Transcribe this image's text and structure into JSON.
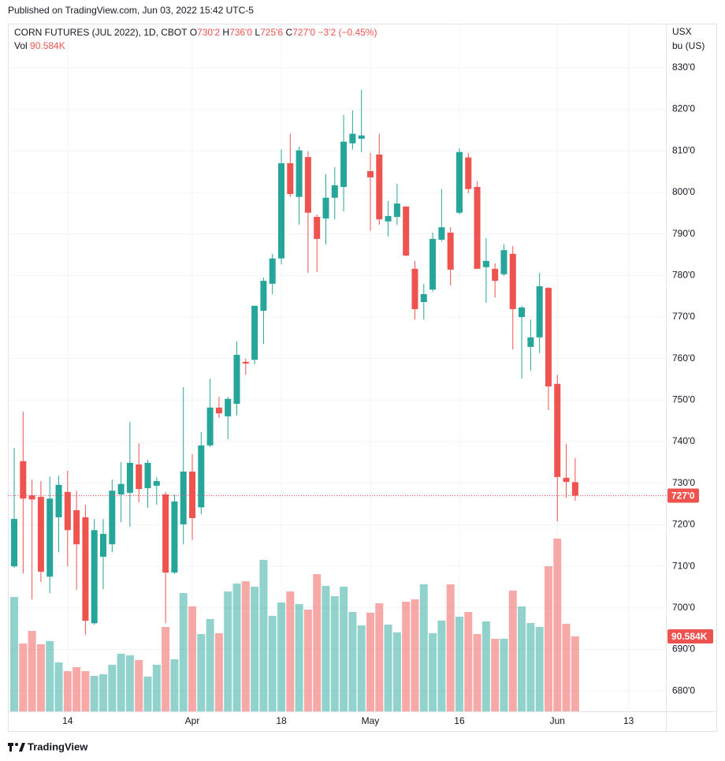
{
  "header": {
    "published": "Published on TradingView.com, Jun 03, 2022 15:42 UTC-5"
  },
  "footer": {
    "brand": "TradingView"
  },
  "chart_data": {
    "type": "candlestick",
    "legend": {
      "symbol": "CORN FUTURES (JUL 2022), 1D, CBOT",
      "fields": [
        {
          "key": "O",
          "text": "730'2"
        },
        {
          "key": "H",
          "text": "736'0"
        },
        {
          "key": "L",
          "text": "725'6"
        },
        {
          "key": "C",
          "text": "727'0"
        }
      ],
      "change": "−3'2 (−0.45%)",
      "volume_key": "Vol",
      "volume_text": "90.584K"
    },
    "currency": "USX",
    "unit": "bu (US)",
    "up_color": "#26a69a",
    "down_color": "#ef5350",
    "open": [
      710.0,
      735.3,
      727.1,
      726.7,
      707.5,
      721.8,
      727.9,
      723.5,
      721.8,
      696.3,
      712.3,
      715.3,
      727.3,
      727.7,
      734.5,
      728.8,
      729.4,
      727.3,
      708.5,
      720.1,
      732.8,
      724.2,
      739.1,
      748.2,
      746.1,
      749.1,
      759.2,
      759.7,
      771.5,
      778.0,
      784.1,
      807.0,
      798.9,
      808.5,
      794.1,
      793.7,
      798.7,
      801.3,
      811.8,
      812.9,
      805.1,
      809.1,
      793.0,
      794.1,
      796.6,
      781.6,
      773.6,
      776.6,
      788.6,
      790.3,
      795.1,
      808.4,
      801.3,
      782.0,
      781.6,
      780.3,
      785.2,
      770.0,
      762.8,
      765.1,
      777.0,
      753.9,
      731.3,
      730.25
    ],
    "high": [
      738.5,
      747.2,
      730.9,
      730.5,
      731.6,
      731.8,
      733.0,
      728.2,
      724.8,
      721.4,
      721.4,
      730.9,
      735.1,
      744.7,
      739.6,
      735.6,
      731.5,
      727.9,
      727.3,
      753.1,
      737.0,
      742.3,
      755.2,
      750.8,
      750.8,
      764.1,
      760.0,
      772.7,
      779.5,
      785.2,
      810.3,
      814.1,
      811.0,
      809.9,
      794.7,
      804.4,
      806.1,
      818.6,
      819.7,
      824.7,
      809.5,
      814.1,
      797.9,
      802.1,
      796.6,
      783.5,
      778.0,
      790.3,
      800.8,
      791.6,
      810.6,
      809.5,
      802.7,
      789.0,
      782.9,
      787.5,
      787.1,
      772.7,
      769.4,
      780.6,
      777.2,
      756.1,
      739.4,
      736.0
    ],
    "low": [
      709.6,
      708.3,
      702.0,
      706.2,
      703.5,
      713.4,
      710.0,
      704.3,
      693.5,
      695.9,
      704.5,
      713.4,
      720.6,
      719.5,
      725.4,
      724.1,
      724.8,
      696.3,
      708.1,
      715.3,
      716.3,
      722.5,
      738.7,
      745.7,
      740.6,
      746.3,
      756.1,
      758.6,
      763.5,
      775.5,
      782.7,
      798.9,
      792.2,
      780.6,
      780.8,
      787.5,
      793.5,
      795.4,
      810.3,
      809.7,
      790.7,
      792.2,
      789.4,
      792.2,
      784.6,
      769.4,
      769.4,
      776.1,
      788.2,
      777.6,
      794.7,
      799.8,
      781.6,
      773.4,
      774.7,
      779.9,
      762.2,
      755.2,
      757.1,
      761.3,
      747.6,
      720.8,
      726.5,
      725.75
    ],
    "close": [
      721.4,
      726.3,
      726.1,
      708.7,
      726.3,
      729.6,
      718.7,
      715.3,
      696.9,
      718.7,
      717.8,
      728.2,
      729.8,
      734.9,
      728.6,
      734.9,
      730.5,
      708.5,
      725.6,
      732.8,
      721.6,
      739.1,
      748.2,
      746.8,
      750.3,
      760.9,
      758.8,
      772.7,
      778.7,
      784.1,
      807.0,
      799.6,
      810.1,
      795.1,
      788.8,
      798.7,
      801.7,
      812.2,
      814.1,
      813.7,
      803.6,
      793.5,
      794.3,
      797.3,
      784.8,
      771.9,
      775.5,
      788.8,
      791.6,
      781.4,
      809.7,
      800.8,
      781.6,
      783.5,
      778.7,
      786.1,
      771.9,
      772.3,
      765.1,
      777.4,
      753.3,
      731.5,
      730.3,
      727.0
    ],
    "volume": [
      138.3,
      82.0,
      97.3,
      81.0,
      84.9,
      59.1,
      48.6,
      53.4,
      48.6,
      42.9,
      44.8,
      56.3,
      69.6,
      67.7,
      62.0,
      42.0,
      56.3,
      102.0,
      62.9,
      143.0,
      126.8,
      93.4,
      111.6,
      94.4,
      144.9,
      154.5,
      157.3,
      150.7,
      183.1,
      115.4,
      131.6,
      144.9,
      129.7,
      123.0,
      165.9,
      151.6,
      139.2,
      150.7,
      120.1,
      103.9,
      119.2,
      130.6,
      104.9,
      95.4,
      132.5,
      135.4,
      153.5,
      94.4,
      109.7,
      153.5,
      114.4,
      120.1,
      93.4,
      108.7,
      87.7,
      87.7,
      145.9,
      126.8,
      106.8,
      102.0,
      175.4,
      208.8,
      105.8,
      90.584
    ],
    "last_price": {
      "value": 727.0,
      "label": "727'0"
    },
    "ylim": [
      675.1,
      840.6
    ],
    "yticks": [
      {
        "value": 680,
        "label": "680'0"
      },
      {
        "value": 690,
        "label": "690'0"
      },
      {
        "value": 700,
        "label": "700'0"
      },
      {
        "value": 710,
        "label": "710'0"
      },
      {
        "value": 720,
        "label": "720'0"
      },
      {
        "value": 730,
        "label": "730'0"
      },
      {
        "value": 740,
        "label": "740'0"
      },
      {
        "value": 750,
        "label": "750'0"
      },
      {
        "value": 760,
        "label": "760'0"
      },
      {
        "value": 770,
        "label": "770'0"
      },
      {
        "value": 780,
        "label": "780'0"
      },
      {
        "value": 790,
        "label": "790'0"
      },
      {
        "value": 800,
        "label": "800'0"
      },
      {
        "value": 810,
        "label": "810'0"
      },
      {
        "value": 820,
        "label": "820'0"
      },
      {
        "value": 830,
        "label": "830'0"
      }
    ],
    "xlim": [
      -0.71,
      73.19
    ],
    "xticks": [
      {
        "value": 6,
        "label": "14"
      },
      {
        "value": 20,
        "label": "Apr"
      },
      {
        "value": 30,
        "label": "18"
      },
      {
        "value": 40,
        "label": "May"
      },
      {
        "value": 50,
        "label": "16"
      },
      {
        "value": 61,
        "label": "Jun"
      },
      {
        "value": 69,
        "label": "13"
      }
    ],
    "grid": true
  }
}
